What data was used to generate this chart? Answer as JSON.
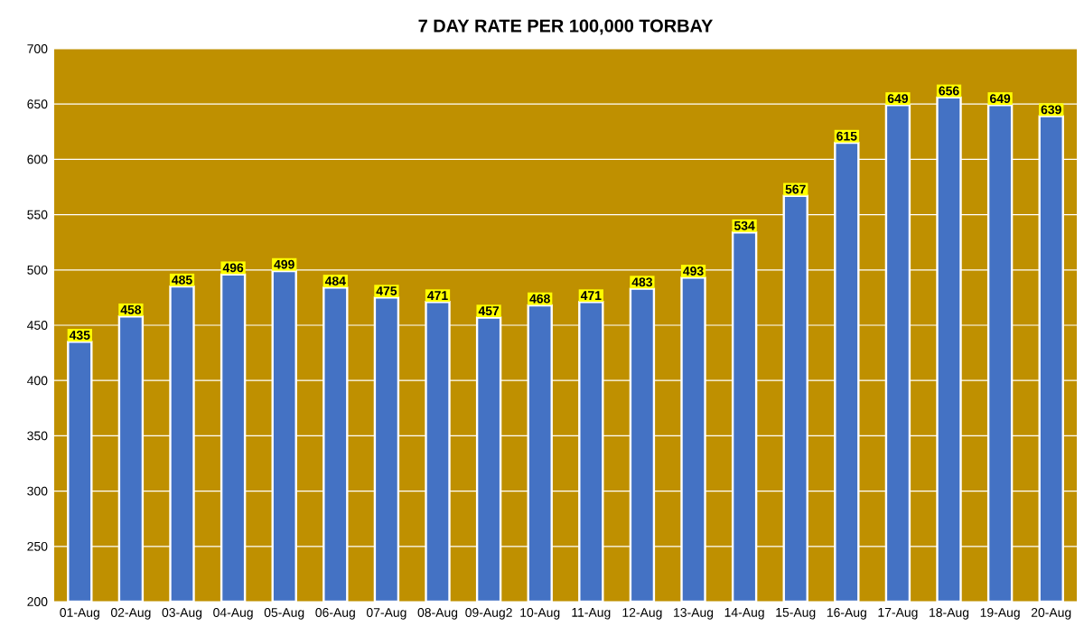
{
  "chart_data": {
    "type": "bar",
    "title": "7 DAY RATE PER 100,000 TORBAY",
    "categories": [
      "01-Aug",
      "02-Aug",
      "03-Aug",
      "04-Aug",
      "05-Aug",
      "06-Aug",
      "07-Aug",
      "08-Aug",
      "09-Aug2",
      "10-Aug",
      "11-Aug",
      "12-Aug",
      "13-Aug",
      "14-Aug",
      "15-Aug",
      "16-Aug",
      "17-Aug",
      "18-Aug",
      "19-Aug",
      "20-Aug"
    ],
    "values": [
      435,
      458,
      485,
      496,
      499,
      484,
      475,
      471,
      457,
      468,
      471,
      483,
      493,
      534,
      567,
      615,
      649,
      656,
      649,
      639
    ],
    "color": "#4472c4",
    "ylim": [
      200,
      700
    ],
    "yticks": [
      200,
      250,
      300,
      350,
      400,
      450,
      500,
      550,
      600,
      650,
      700
    ],
    "grid": "y",
    "data_labels": true
  }
}
